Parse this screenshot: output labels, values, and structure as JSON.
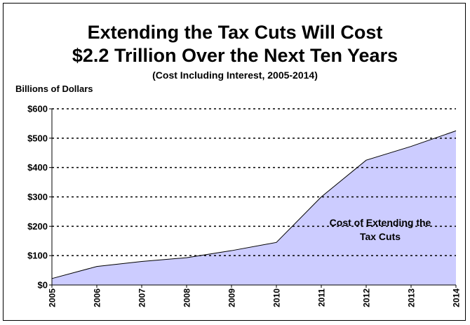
{
  "chart_data": {
    "type": "area",
    "title": "Extending the Tax Cuts Will Cost",
    "title_line2": "$2.2 Trillion Over the Next Ten Years",
    "subtitle": "(Cost Including Interest, 2005-2014)",
    "ylabel": "Billions of Dollars",
    "xlabel": "",
    "x": [
      "2005",
      "2006",
      "2007",
      "2008",
      "2009",
      "2010",
      "2011",
      "2012",
      "2013",
      "2014"
    ],
    "series": [
      {
        "values": [
          22,
          63,
          80,
          93,
          117,
          145,
          300,
          425,
          472,
          525
        ]
      }
    ],
    "annotation": "Cost of Extending the Tax Cuts",
    "annotation_lines": [
      "Cost of Extending the",
      "Tax Cuts"
    ],
    "ylim": [
      0,
      600
    ],
    "yticks": [
      0,
      100,
      200,
      300,
      400,
      500,
      600
    ],
    "ytick_labels": [
      "$0",
      "$100",
      "$200",
      "$300",
      "$400",
      "$500",
      "$600"
    ],
    "grid": true,
    "colors": {
      "fill": "#ccccff",
      "line": "#000000",
      "grid": "#000000",
      "background": "#ffffff"
    }
  }
}
